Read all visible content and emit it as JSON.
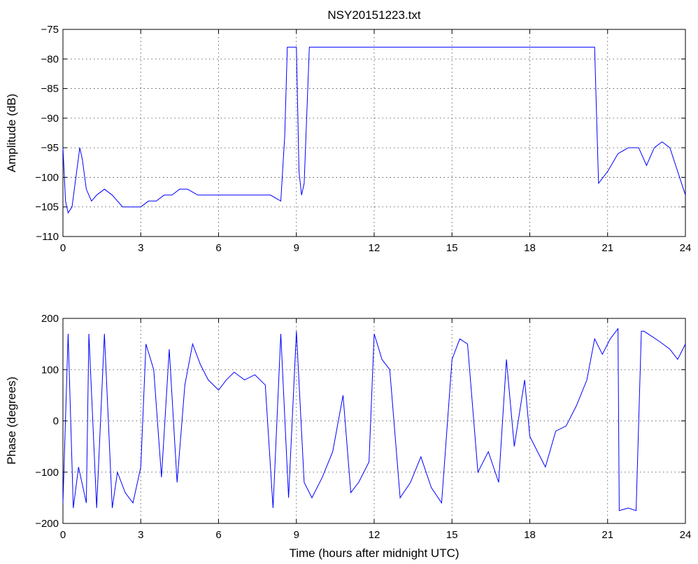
{
  "chart_data": [
    {
      "type": "line",
      "title": "NSY20151223.txt",
      "xlabel": "",
      "ylabel": "Amplitude (dB)",
      "xlim": [
        0,
        24
      ],
      "ylim": [
        -110,
        -75
      ],
      "xticks": [
        "0",
        "3",
        "6",
        "9",
        "12",
        "15",
        "18",
        "21",
        "24"
      ],
      "yticks": [
        "−75",
        "−80",
        "−85",
        "−90",
        "−95",
        "−100",
        "−105",
        "−110"
      ],
      "grid": true,
      "color": "#0000ff",
      "series": [
        {
          "x": [
            0,
            0.1,
            0.2,
            0.35,
            0.5,
            0.65,
            0.75,
            0.9,
            1.1,
            1.3,
            1.6,
            1.9,
            2.3,
            2.7,
            3.0,
            3.3,
            3.6,
            3.9,
            4.2,
            4.5,
            4.8,
            5.2,
            5.6,
            6.0,
            6.5,
            7.0,
            7.5,
            8.0,
            8.4,
            8.55,
            8.65,
            9.0,
            9.1,
            9.2,
            9.3,
            9.5,
            12,
            15,
            18,
            20.0,
            20.5,
            20.55,
            20.65,
            21.0,
            21.4,
            21.8,
            22.2,
            22.5,
            22.8,
            23.1,
            23.4,
            23.7,
            24.0
          ],
          "y": [
            -95,
            -104,
            -106,
            -105,
            -100,
            -95,
            -97,
            -102,
            -104,
            -103,
            -102,
            -103,
            -105,
            -105,
            -105,
            -104,
            -104,
            -103,
            -103,
            -102,
            -102,
            -103,
            -103,
            -103,
            -103,
            -103,
            -103,
            -103,
            -104,
            -93,
            -78,
            -78,
            -99,
            -103,
            -101,
            -78,
            -78,
            -78,
            -78,
            -78,
            -78,
            -86,
            -101,
            -99,
            -96,
            -95,
            -95,
            -98,
            -95,
            -94,
            -95,
            -99,
            -103
          ]
        }
      ]
    },
    {
      "type": "line",
      "title": "",
      "xlabel": "Time (hours after midnight UTC)",
      "ylabel": "Phase (degrees)",
      "xlim": [
        0,
        24
      ],
      "ylim": [
        -200,
        200
      ],
      "xticks": [
        "0",
        "3",
        "6",
        "9",
        "12",
        "15",
        "18",
        "21",
        "24"
      ],
      "yticks": [
        "200",
        "100",
        "0",
        "−100",
        "−200"
      ],
      "grid": true,
      "color": "#0000ff",
      "series": [
        {
          "x": [
            0,
            0.2,
            0.4,
            0.6,
            0.9,
            1.0,
            1.3,
            1.6,
            1.9,
            2.1,
            2.4,
            2.7,
            3.0,
            3.2,
            3.5,
            3.8,
            4.1,
            4.4,
            4.7,
            5.0,
            5.3,
            5.6,
            6.0,
            6.3,
            6.6,
            7.0,
            7.4,
            7.8,
            8.1,
            8.4,
            8.7,
            9.0,
            9.3,
            9.6,
            10.0,
            10.4,
            10.8,
            11.1,
            11.4,
            11.8,
            12.0,
            12.3,
            12.6,
            13.0,
            13.4,
            13.8,
            14.2,
            14.6,
            15.0,
            15.3,
            15.6,
            16.0,
            16.4,
            16.8,
            17.1,
            17.4,
            17.8,
            18.0,
            18.3,
            18.6,
            19.0,
            19.4,
            19.8,
            20.2,
            20.5,
            20.8,
            21.1,
            21.4,
            21.45,
            21.8,
            22.1,
            22.3,
            22.4,
            22.7,
            23.0,
            23.4,
            23.7,
            24.0
          ],
          "y": [
            -160,
            170,
            -170,
            -90,
            -160,
            170,
            -170,
            170,
            -170,
            -100,
            -140,
            -160,
            -90,
            150,
            100,
            -110,
            140,
            -120,
            70,
            150,
            110,
            80,
            60,
            80,
            95,
            80,
            90,
            70,
            -170,
            170,
            -150,
            175,
            -120,
            -150,
            -110,
            -60,
            50,
            -140,
            -120,
            -80,
            170,
            120,
            100,
            -150,
            -120,
            -70,
            -130,
            -160,
            120,
            160,
            150,
            -100,
            -60,
            -120,
            120,
            -50,
            80,
            -30,
            -60,
            -90,
            -20,
            -10,
            30,
            80,
            160,
            130,
            160,
            180,
            -175,
            -170,
            -175,
            175,
            175,
            165,
            155,
            140,
            120,
            150
          ]
        }
      ]
    }
  ]
}
